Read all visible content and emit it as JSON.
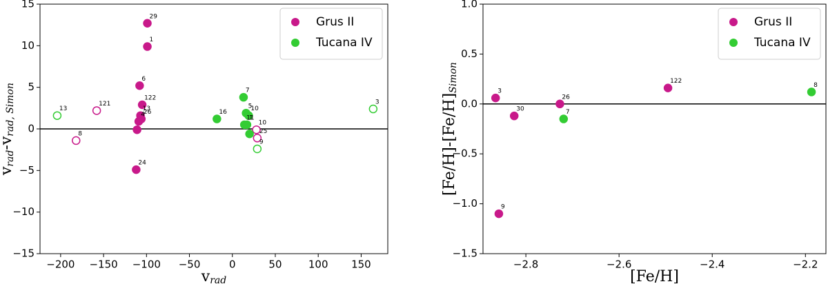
{
  "chart_data": [
    {
      "type": "scatter",
      "xlabel": [
        "v",
        "rad"
      ],
      "ylabel": [
        "v",
        "rad",
        "-v",
        "rad, Simon"
      ],
      "xlim": [
        -224,
        181
      ],
      "ylim": [
        -15,
        15
      ],
      "xticks": [
        {
          "value": -200,
          "label": "−200"
        },
        {
          "value": -150,
          "label": "−150"
        },
        {
          "value": -100,
          "label": "−100"
        },
        {
          "value": -50,
          "label": "−50"
        },
        0,
        50,
        100,
        150
      ],
      "yticks": [
        {
          "value": -15,
          "label": "−15"
        },
        {
          "value": -10,
          "label": "−10"
        },
        {
          "value": -5,
          "label": "−5"
        },
        0,
        5,
        10,
        15
      ],
      "hline": 0,
      "legend": "upper right",
      "series": [
        {
          "name": "Grus II",
          "color": "#c8198a",
          "x": [
            -99,
            -99,
            -108,
            -105,
            -158,
            -107,
            -106,
            -109,
            -111,
            -112,
            -182,
            28,
            29
          ],
          "values": [
            12.7,
            9.9,
            5.2,
            2.9,
            2.2,
            1.6,
            1.2,
            0.9,
            -0.1,
            -4.9,
            -1.4,
            -0.1,
            -1.1
          ],
          "hollow": [
            false,
            false,
            false,
            false,
            true,
            false,
            false,
            false,
            false,
            false,
            true,
            true,
            true
          ],
          "point_labels": [
            "29",
            "1",
            "6",
            "122",
            "121",
            "13",
            "26",
            "4",
            null,
            "24",
            "8",
            "10",
            "25"
          ]
        },
        {
          "name": "Tucana IV",
          "color": "#33cc33",
          "x": [
            -204,
            -18,
            13,
            16,
            19,
            14,
            17,
            20,
            29,
            164
          ],
          "values": [
            1.6,
            1.2,
            3.8,
            1.9,
            1.6,
            0.5,
            0.5,
            -0.6,
            -2.4,
            2.4
          ],
          "hollow": [
            true,
            false,
            false,
            false,
            false,
            false,
            false,
            false,
            true,
            true
          ],
          "point_labels": [
            "13",
            "16",
            "7",
            "5",
            "10",
            "11",
            "1",
            null,
            "9",
            "3"
          ]
        }
      ]
    },
    {
      "type": "scatter",
      "xlabel": [
        "[Fe/H]"
      ],
      "ylabel": [
        "[Fe/H]-[Fe/H]",
        "Simon"
      ],
      "xlim": [
        -2.892,
        -2.156
      ],
      "ylim": [
        -1.5,
        1.0
      ],
      "xticks": [
        {
          "value": -2.8,
          "label": "−2.8"
        },
        {
          "value": -2.6,
          "label": "−2.6"
        },
        {
          "value": -2.4,
          "label": "−2.4"
        },
        {
          "value": -2.2,
          "label": "−2.2"
        }
      ],
      "yticks": [
        {
          "value": -1.5,
          "label": "−1.5"
        },
        {
          "value": -1.0,
          "label": "−1.0"
        },
        {
          "value": -0.5,
          "label": "−0.5"
        },
        {
          "value": 0,
          "label": "0.0"
        },
        0.5,
        {
          "value": 1.0,
          "label": "1.0"
        }
      ],
      "hline": 0,
      "legend": "upper right",
      "series": [
        {
          "name": "Grus II",
          "color": "#c8198a",
          "x": [
            -2.865,
            -2.825,
            -2.727,
            -2.495,
            -2.858
          ],
          "values": [
            0.06,
            -0.12,
            0.0,
            0.16,
            -1.1
          ],
          "hollow": [
            false,
            false,
            false,
            false,
            false
          ],
          "point_labels": [
            "3",
            "30",
            "26",
            "122",
            "9"
          ]
        },
        {
          "name": "Tucana IV",
          "color": "#33cc33",
          "x": [
            -2.719,
            -2.187
          ],
          "values": [
            -0.15,
            0.12
          ],
          "hollow": [
            false,
            false
          ],
          "point_labels": [
            "7",
            "8"
          ]
        }
      ]
    }
  ]
}
